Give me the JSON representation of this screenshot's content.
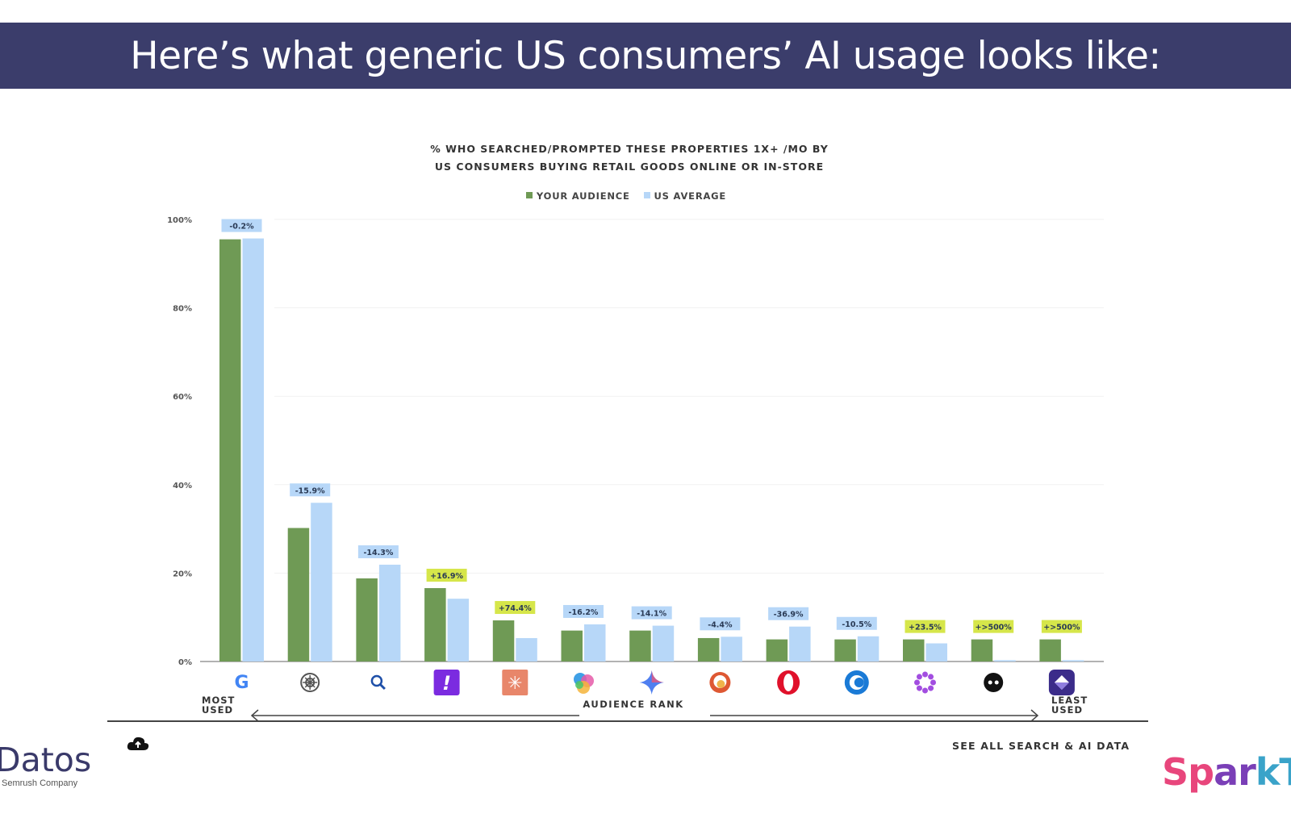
{
  "banner": {
    "title": "Here’s what generic US consumers’ AI usage looks like:",
    "bg": "#3b3d6b"
  },
  "chart_data": {
    "type": "bar",
    "title_lines": [
      "% WHO SEARCHED/PROMPTED THESE PROPERTIES 1X+ /MO BY",
      "US CONSUMERS BUYING RETAIL GOODS ONLINE OR IN-STORE"
    ],
    "legend": [
      {
        "label": "YOUR AUDIENCE",
        "color": "#6f9a55"
      },
      {
        "label": "US AVERAGE",
        "color": "#b7d7f8"
      }
    ],
    "legend_position": "top-center",
    "y_ticks": [
      "0%",
      "20%",
      "40%",
      "60%",
      "80%",
      "100%"
    ],
    "ylim": [
      0,
      100
    ],
    "grid": true,
    "categories": [
      "google-icon",
      "chatgpt-icon",
      "bing-search-icon",
      "yahoo-icon",
      "claude-icon",
      "copilot-icon",
      "gemini-icon",
      "duckduckgo-icon",
      "opera-icon",
      "ecosia-icon",
      "perplexity-icon",
      "meta-ai-icon",
      "you-com-icon"
    ],
    "series": [
      {
        "name": "YOUR AUDIENCE",
        "values": [
          95.5,
          30.2,
          18.8,
          16.6,
          9.3,
          7.0,
          7.0,
          5.3,
          5.0,
          5.0,
          5.0,
          5.0,
          5.0
        ]
      },
      {
        "name": "US AVERAGE",
        "values": [
          95.7,
          35.9,
          21.9,
          14.2,
          5.3,
          8.4,
          8.1,
          5.6,
          7.9,
          5.7,
          4.1,
          0.3,
          0.3
        ]
      }
    ],
    "annotations": [
      {
        "text": "-0.2%",
        "tone": "negative"
      },
      {
        "text": "-15.9%",
        "tone": "negative"
      },
      {
        "text": "-14.3%",
        "tone": "negative"
      },
      {
        "text": "+16.9%",
        "tone": "positive"
      },
      {
        "text": "+74.4%",
        "tone": "positive"
      },
      {
        "text": "-16.2%",
        "tone": "negative"
      },
      {
        "text": "-14.1%",
        "tone": "negative"
      },
      {
        "text": "-4.4%",
        "tone": "negative"
      },
      {
        "text": "-36.9%",
        "tone": "negative"
      },
      {
        "text": "-10.5%",
        "tone": "negative"
      },
      {
        "text": "+23.5%",
        "tone": "positive"
      },
      {
        "text": "+>500%",
        "tone": "positive"
      },
      {
        "text": "+>500%",
        "tone": "positive"
      }
    ],
    "annotation_colors": {
      "negative": "#b7d7f8",
      "positive": "#d6e64a"
    },
    "axis_rank": {
      "left": [
        "MOST",
        "USED"
      ],
      "center": "AUDIENCE RANK",
      "right": [
        "LEAST",
        "USED"
      ]
    }
  },
  "footer": {
    "datos_logo": "Datos",
    "datos_sub": "Semrush Company",
    "see_all": "SEE ALL SEARCH & AI DATA",
    "spark_logo": "SparkT",
    "spark_colors": [
      "#e8467c",
      "#7a3fb7",
      "#3aa3c9"
    ]
  },
  "icons": {
    "cloud": "cloud-icon"
  }
}
